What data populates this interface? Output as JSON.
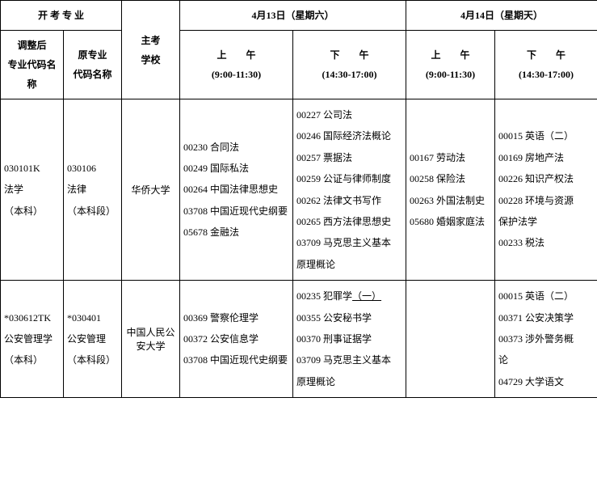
{
  "headers": {
    "openMajor": "开 考 专 业",
    "adjustedMajor": {
      "line1": "调整后",
      "line2": "专业代码名称"
    },
    "origMajor": {
      "line1": "原专业",
      "line2": "代码名称"
    },
    "host": {
      "line1": "主考",
      "line2": "学校"
    },
    "day1": "4月13日（星期六）",
    "day2": "4月14日（星期天）",
    "am": {
      "line1": "上　　午",
      "line2": "(9:00-11:30)"
    },
    "pm": {
      "line1": "下　　午",
      "line2": "(14:30-17:00)"
    }
  },
  "rows": [
    {
      "adjusted": [
        "030101K",
        "法学",
        "（本科）"
      ],
      "orig": [
        "030106",
        "法律",
        "（本科段）"
      ],
      "host": "华侨大学",
      "d1am": [
        "00230 合同法",
        "00249 国际私法",
        "00264 中国法律思想史",
        "03708 中国近现代史纲要",
        "05678 金融法"
      ],
      "d1pm": [
        "00227 公司法",
        "00246 国际经济法概论",
        "00257 票据法",
        "00259 公证与律师制度",
        "00262 法律文书写作",
        "00265 西方法律思想史",
        "03709 马克思主义基本",
        "原理概论"
      ],
      "d2am": [
        "00167 劳动法",
        "00258 保险法",
        "00263 外国法制史",
        "05680 婚姻家庭法"
      ],
      "d2pm": [
        "00015 英语（二）",
        "00169 房地产法",
        "00226 知识产权法",
        "00228 环境与资源",
        "保护法学",
        "00233 税法"
      ]
    },
    {
      "adjusted": [
        "*030612TK",
        "公安管理学",
        "（本科）"
      ],
      "orig": [
        "*030401",
        "公安管理",
        "（本科段）"
      ],
      "host": "中国人民公安大学",
      "d1am": [
        "00369 警察伦理学",
        "00372 公安信息学",
        "03708 中国近现代史纲要"
      ],
      "d1pm": [
        "00235 犯罪学（一）",
        "00355 公安秘书学",
        "00370 刑事证据学",
        "03709 马克思主义基本",
        "原理概论"
      ],
      "d2am": [],
      "d2pm": [
        "00015 英语（二）",
        "00371 公安决策学",
        "00373 涉外警务概",
        "论",
        "04729 大学语文"
      ]
    }
  ]
}
